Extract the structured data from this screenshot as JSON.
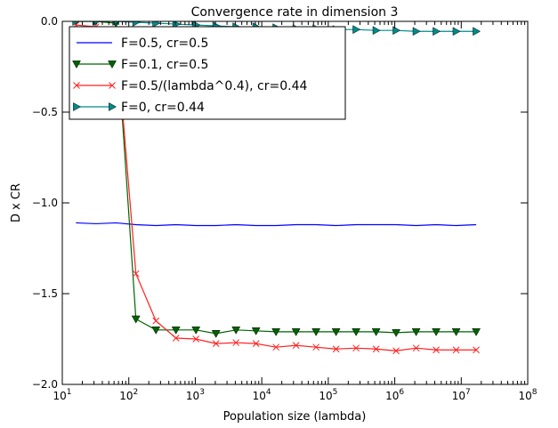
{
  "chart_data": {
    "type": "line",
    "title": "Convergence rate in dimension 3",
    "xlabel": "Population size (lambda)",
    "ylabel": "D x CR",
    "xscale": "log",
    "xlim": [
      10,
      100000000
    ],
    "ylim": [
      -2.0,
      0.0
    ],
    "x_ticks": [
      {
        "value": 10,
        "base": "10",
        "exp": "1"
      },
      {
        "value": 100,
        "base": "10",
        "exp": "2"
      },
      {
        "value": 1000,
        "base": "10",
        "exp": "3"
      },
      {
        "value": 10000,
        "base": "10",
        "exp": "4"
      },
      {
        "value": 100000,
        "base": "10",
        "exp": "5"
      },
      {
        "value": 1000000,
        "base": "10",
        "exp": "6"
      },
      {
        "value": 10000000,
        "base": "10",
        "exp": "7"
      },
      {
        "value": 100000000,
        "base": "10",
        "exp": "8"
      }
    ],
    "y_ticks": [
      {
        "value": 0.0,
        "label": "0.0"
      },
      {
        "value": -0.5,
        "label": "−0.5"
      },
      {
        "value": -1.0,
        "label": "−1.0"
      },
      {
        "value": -1.5,
        "label": "−1.5"
      },
      {
        "value": -2.0,
        "label": "−2.0"
      }
    ],
    "legend_position": "top-left",
    "x": [
      16,
      32,
      64,
      128,
      256,
      512,
      1024,
      2048,
      4096,
      8192,
      16384,
      32768,
      65536,
      131072,
      262144,
      524288,
      1048576,
      2097152,
      4194304,
      8388608,
      16777216
    ],
    "series": [
      {
        "name": "F=0.5, cr=0.5",
        "color": "#0000ff",
        "marker": "none",
        "values": [
          -1.11,
          -1.115,
          -1.11,
          -1.12,
          -1.125,
          -1.12,
          -1.125,
          -1.125,
          -1.12,
          -1.125,
          -1.125,
          -1.12,
          -1.12,
          -1.125,
          -1.12,
          -1.12,
          -1.12,
          -1.125,
          -1.12,
          -1.125,
          -1.12
        ]
      },
      {
        "name": "F=0.1, cr=0.5",
        "color": "#006400",
        "marker": "triangle-down",
        "values": [
          0.0,
          0.0,
          -0.01,
          -1.64,
          -1.7,
          -1.7,
          -1.7,
          -1.72,
          -1.7,
          -1.705,
          -1.71,
          -1.71,
          -1.71,
          -1.71,
          -1.71,
          -1.71,
          -1.715,
          -1.71,
          -1.71,
          -1.71,
          -1.71
        ]
      },
      {
        "name": "F=0.5/(lambda^0.4), cr=0.44",
        "color": "#ff2020",
        "marker": "x",
        "values": [
          -0.02,
          -0.03,
          -0.05,
          -1.39,
          -1.65,
          -1.745,
          -1.75,
          -1.775,
          -1.77,
          -1.775,
          -1.795,
          -1.785,
          -1.795,
          -1.805,
          -1.8,
          -1.805,
          -1.815,
          -1.8,
          -1.81,
          -1.81,
          -1.81
        ]
      },
      {
        "name": "F=0, cr=0.44",
        "color": "#008b8b",
        "marker": "triangle-right",
        "values": [
          0.0,
          0.0,
          0.0,
          -0.005,
          -0.01,
          -0.015,
          -0.02,
          -0.025,
          -0.03,
          -0.03,
          -0.035,
          -0.04,
          -0.04,
          -0.045,
          -0.045,
          -0.05,
          -0.05,
          -0.055,
          -0.055,
          -0.055,
          -0.055
        ]
      }
    ]
  }
}
